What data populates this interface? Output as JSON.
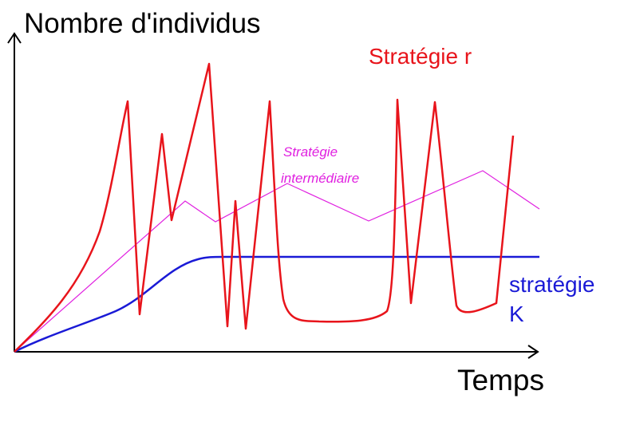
{
  "axes": {
    "y_label": "Nombre d'individus",
    "x_label": "Temps"
  },
  "series": {
    "r": {
      "label": "Stratégie r",
      "color": "#e8141b"
    },
    "k": {
      "label_line1": "stratégie",
      "label_line2": "K",
      "color": "#1a1ad6"
    },
    "intermediate": {
      "label_line1": "Stratégie",
      "label_line2": "intermédiaire",
      "color": "#e020e0"
    }
  }
}
